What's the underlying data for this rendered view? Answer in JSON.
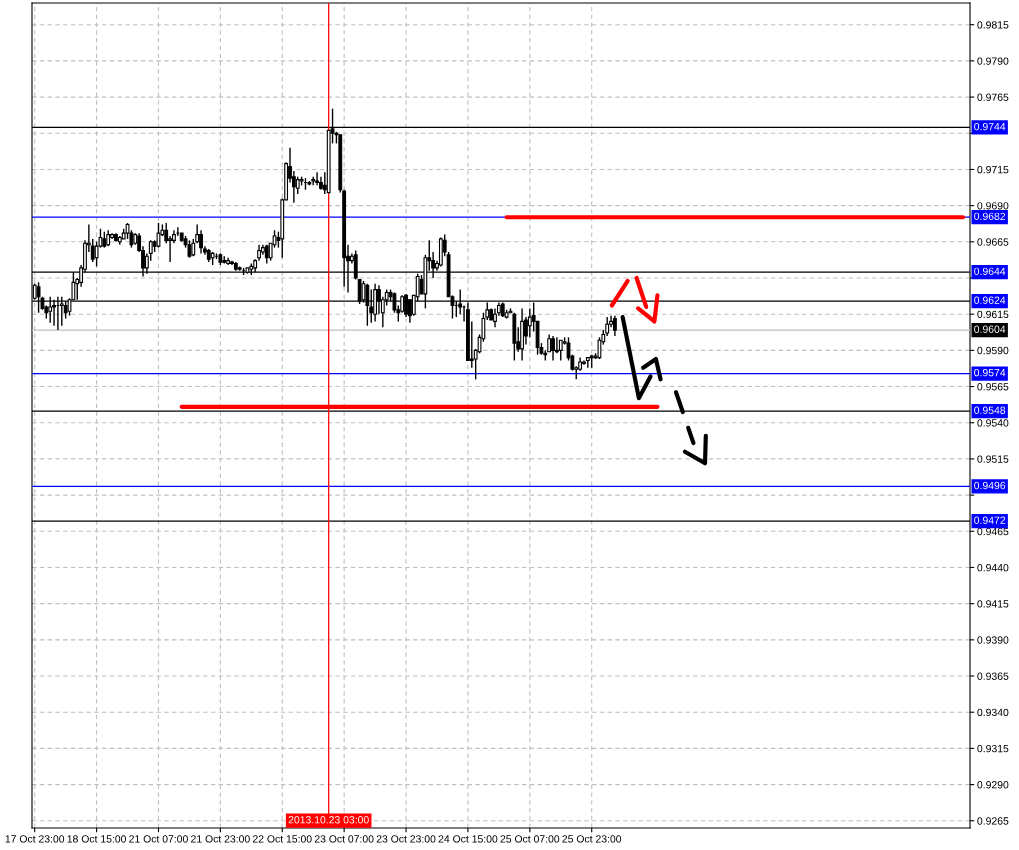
{
  "chart_data": {
    "type": "candlestick",
    "categories": [
      "17 Oct 23:00",
      null,
      null,
      null,
      null,
      null,
      null,
      null,
      null,
      null,
      null,
      null,
      null,
      null,
      null,
      null,
      "18 Oct 15:00",
      null,
      null,
      null,
      null,
      null,
      null,
      null,
      null,
      null,
      null,
      null,
      null,
      null,
      null,
      null,
      "21 Oct 07:00",
      null,
      null,
      null,
      null,
      null,
      null,
      null,
      null,
      null,
      null,
      null,
      null,
      null,
      null,
      null,
      "21 Oct 23:00",
      null,
      null,
      null,
      null,
      null,
      null,
      null,
      null,
      null,
      null,
      null,
      null,
      null,
      null,
      null,
      "22 Oct 15:00",
      null,
      null,
      null,
      null,
      null,
      null,
      null,
      null,
      null,
      null,
      null,
      null,
      null,
      null,
      null,
      "23 Oct 07:00",
      null,
      null,
      null,
      null,
      null,
      null,
      null,
      null,
      null,
      null,
      null,
      null,
      null,
      null,
      null,
      "23 Oct 23:00",
      null,
      null,
      null,
      null,
      null,
      null,
      null,
      null,
      null,
      null,
      null,
      null,
      null,
      null,
      null,
      "24 Oct 15:00",
      null,
      null,
      null,
      null,
      null,
      null,
      null,
      null,
      null,
      null,
      null,
      null,
      null,
      null,
      null,
      "25 Oct 07:00",
      null,
      null,
      null,
      null,
      null,
      null,
      null,
      null,
      null,
      null,
      null,
      null,
      null,
      null,
      null,
      "25 Oct 23:00",
      null,
      null,
      null,
      null,
      null,
      null,
      null,
      null,
      null,
      null,
      null,
      null,
      null,
      null,
      null,
      null,
      null,
      null,
      null,
      null,
      null,
      null,
      null,
      null,
      null,
      null,
      null,
      null,
      null,
      null,
      null,
      null,
      null,
      null,
      null,
      null,
      null,
      null,
      null,
      null,
      null,
      null,
      null,
      null,
      null,
      null,
      null,
      null,
      null,
      null,
      null,
      null,
      null,
      null,
      null,
      null,
      null,
      null,
      null,
      null,
      null,
      null,
      null,
      null,
      null,
      null,
      null,
      null,
      null,
      null,
      null,
      null,
      null,
      null,
      null,
      null,
      null,
      null,
      null,
      null,
      null,
      null,
      null,
      null,
      null,
      null,
      null,
      null,
      null,
      null,
      null,
      null,
      null,
      null,
      null,
      null,
      null
    ],
    "ohlc": [
      [
        0.9626,
        0.9636,
        0.9625,
        0.9635
      ],
      [
        0.9634,
        0.9637,
        0.9616,
        0.9627
      ],
      [
        0.9626,
        0.9627,
        0.9618,
        0.9619
      ],
      [
        0.962,
        0.9621,
        0.9612,
        0.9616
      ],
      [
        0.9617,
        0.9627,
        0.9609,
        0.962
      ],
      [
        0.9621,
        0.9625,
        0.9607,
        0.962
      ],
      [
        0.9621,
        0.9627,
        0.9604,
        0.9621
      ],
      [
        0.9621,
        0.9627,
        0.9607,
        0.9622
      ],
      [
        0.9621,
        0.9624,
        0.9612,
        0.9616
      ],
      [
        0.9617,
        0.9626,
        0.9614,
        0.9625
      ],
      [
        0.9625,
        0.9644,
        0.9625,
        0.9637
      ],
      [
        0.9636,
        0.964,
        0.9625,
        0.9639
      ],
      [
        0.9637,
        0.9649,
        0.9634,
        0.9647
      ],
      [
        0.9646,
        0.9666,
        0.9644,
        0.9664
      ],
      [
        0.9663,
        0.9677,
        0.9658,
        0.9664
      ],
      [
        0.9662,
        0.9667,
        0.9651,
        0.9653
      ],
      [
        0.9654,
        0.9665,
        0.9648,
        0.9662
      ],
      [
        0.9662,
        0.9674,
        0.9661,
        0.9668
      ],
      [
        0.9667,
        0.9672,
        0.9661,
        0.9662
      ],
      [
        0.9663,
        0.9673,
        0.9662,
        0.967
      ],
      [
        0.9668,
        0.9671,
        0.9667,
        0.967
      ],
      [
        0.967,
        0.9671,
        0.9665,
        0.9666
      ],
      [
        0.9665,
        0.9669,
        0.9663,
        0.9668
      ],
      [
        0.9667,
        0.9674,
        0.9667,
        0.9671
      ],
      [
        0.9671,
        0.9678,
        0.9667,
        0.9677
      ],
      [
        0.9671,
        0.9673,
        0.9661,
        0.9663
      ],
      [
        0.9664,
        0.9671,
        0.9663,
        0.967
      ],
      [
        0.9669,
        0.9671,
        0.9658,
        0.9659
      ],
      [
        0.9659,
        0.9662,
        0.9641,
        0.9647
      ],
      [
        0.9647,
        0.9657,
        0.9643,
        0.9655
      ],
      [
        0.9657,
        0.9666,
        0.9652,
        0.9665
      ],
      [
        0.9665,
        0.9666,
        0.9658,
        0.9662
      ],
      [
        0.9662,
        0.9678,
        0.9661,
        0.9671
      ],
      [
        0.967,
        0.9677,
        0.9669,
        0.9673
      ],
      [
        0.9673,
        0.9678,
        0.9664,
        0.9666
      ],
      [
        0.9666,
        0.9669,
        0.9651,
        0.9667
      ],
      [
        0.9666,
        0.9673,
        0.9664,
        0.967
      ],
      [
        0.9671,
        0.9675,
        0.9669,
        0.9671
      ],
      [
        0.9671,
        0.9671,
        0.9665,
        0.9666
      ],
      [
        0.9667,
        0.9669,
        0.9661,
        0.9663
      ],
      [
        0.9663,
        0.9666,
        0.9654,
        0.9655
      ],
      [
        0.9656,
        0.9667,
        0.9655,
        0.9664
      ],
      [
        0.9665,
        0.9677,
        0.9664,
        0.967
      ],
      [
        0.967,
        0.9673,
        0.9657,
        0.9661
      ],
      [
        0.966,
        0.9662,
        0.9656,
        0.9658
      ],
      [
        0.9659,
        0.966,
        0.9651,
        0.9653
      ],
      [
        0.9654,
        0.9658,
        0.9649,
        0.9657
      ],
      [
        0.9655,
        0.9657,
        0.9653,
        0.9655
      ],
      [
        0.9656,
        0.9657,
        0.9649,
        0.9651
      ],
      [
        0.9652,
        0.9655,
        0.965,
        0.9651
      ],
      [
        0.965,
        0.9654,
        0.9649,
        0.9652
      ],
      [
        0.9651,
        0.9652,
        0.9649,
        0.965
      ],
      [
        0.965,
        0.9651,
        0.9645,
        0.9646
      ],
      [
        0.9647,
        0.9648,
        0.9645,
        0.9646
      ],
      [
        0.9645,
        0.9647,
        0.9642,
        0.9645
      ],
      [
        0.9644,
        0.9647,
        0.9643,
        0.9647
      ],
      [
        0.9646,
        0.965,
        0.9642,
        0.9648
      ],
      [
        0.9647,
        0.9653,
        0.9644,
        0.9652
      ],
      [
        0.9654,
        0.9663,
        0.9652,
        0.9659
      ],
      [
        0.9658,
        0.9663,
        0.9656,
        0.9661
      ],
      [
        0.9662,
        0.9663,
        0.965,
        0.9654
      ],
      [
        0.9654,
        0.9664,
        0.9652,
        0.9664
      ],
      [
        0.9663,
        0.9673,
        0.9661,
        0.9669
      ],
      [
        0.9668,
        0.9672,
        0.9661,
        0.9666
      ],
      [
        0.9667,
        0.9695,
        0.9654,
        0.9694
      ],
      [
        0.9694,
        0.972,
        0.9694,
        0.9719
      ],
      [
        0.9717,
        0.973,
        0.9706,
        0.9709
      ],
      [
        0.971,
        0.9714,
        0.9692,
        0.9703
      ],
      [
        0.9702,
        0.971,
        0.9698,
        0.9708
      ],
      [
        0.9707,
        0.971,
        0.9704,
        0.9708
      ],
      [
        0.9706,
        0.9709,
        0.9701,
        0.9706
      ],
      [
        0.9706,
        0.9707,
        0.9704,
        0.9705
      ],
      [
        0.9707,
        0.971,
        0.9704,
        0.9708
      ],
      [
        0.9707,
        0.9713,
        0.9704,
        0.9706
      ],
      [
        0.9706,
        0.971,
        0.9701,
        0.9702
      ],
      [
        0.9704,
        0.9713,
        0.9698,
        0.9701
      ],
      [
        0.9699,
        0.9742,
        0.9699,
        0.9742
      ],
      [
        0.9743,
        0.9757,
        0.9733,
        0.974
      ],
      [
        0.974,
        0.9741,
        0.9733,
        0.9739
      ],
      [
        0.9739,
        0.9739,
        0.9699,
        0.9701
      ],
      [
        0.97,
        0.9701,
        0.9634,
        0.9654
      ],
      [
        0.9655,
        0.9663,
        0.963,
        0.9652
      ],
      [
        0.9652,
        0.9657,
        0.965,
        0.9655
      ],
      [
        0.9656,
        0.9659,
        0.9639,
        0.964
      ],
      [
        0.9639,
        0.9639,
        0.9622,
        0.9624
      ],
      [
        0.9625,
        0.9638,
        0.9623,
        0.9636
      ],
      [
        0.9635,
        0.9636,
        0.9607,
        0.9621
      ],
      [
        0.962,
        0.9632,
        0.9609,
        0.9616
      ],
      [
        0.9615,
        0.9636,
        0.961,
        0.9632
      ],
      [
        0.9632,
        0.9635,
        0.9615,
        0.9624
      ],
      [
        0.9616,
        0.9627,
        0.9606,
        0.9625
      ],
      [
        0.9625,
        0.9632,
        0.9621,
        0.963
      ],
      [
        0.963,
        0.9632,
        0.9624,
        0.9627
      ],
      [
        0.9629,
        0.963,
        0.9616,
        0.9618
      ],
      [
        0.9618,
        0.9621,
        0.961,
        0.9616
      ],
      [
        0.9617,
        0.9628,
        0.9616,
        0.9627
      ],
      [
        0.9628,
        0.9629,
        0.9613,
        0.9615
      ],
      [
        0.9625,
        0.9625,
        0.9609,
        0.9614
      ],
      [
        0.9615,
        0.9628,
        0.9614,
        0.9628
      ],
      [
        0.9627,
        0.9643,
        0.9624,
        0.9641
      ],
      [
        0.9639,
        0.9642,
        0.9629,
        0.9629
      ],
      [
        0.9629,
        0.9656,
        0.9619,
        0.9654
      ],
      [
        0.9654,
        0.9666,
        0.9645,
        0.9652
      ],
      [
        0.9652,
        0.9658,
        0.964,
        0.9647
      ],
      [
        0.9647,
        0.9652,
        0.9645,
        0.965
      ],
      [
        0.9649,
        0.9668,
        0.9648,
        0.9667
      ],
      [
        0.9666,
        0.967,
        0.9655,
        0.9658
      ],
      [
        0.9656,
        0.9658,
        0.9627,
        0.9627
      ],
      [
        0.9627,
        0.9628,
        0.9612,
        0.9621
      ],
      [
        0.9621,
        0.9624,
        0.9613,
        0.9621
      ],
      [
        0.9622,
        0.9632,
        0.9615,
        0.962
      ],
      [
        0.962,
        0.9621,
        0.961,
        0.962
      ],
      [
        0.9618,
        0.9623,
        0.9583,
        0.9583
      ],
      [
        0.9584,
        0.961,
        0.9578,
        0.9583
      ],
      [
        0.9584,
        0.9591,
        0.957,
        0.959
      ],
      [
        0.9589,
        0.9601,
        0.9588,
        0.9599
      ],
      [
        0.9598,
        0.9616,
        0.9596,
        0.9612
      ],
      [
        0.9613,
        0.9623,
        0.9611,
        0.9618
      ],
      [
        0.9618,
        0.9619,
        0.9611,
        0.9611
      ],
      [
        0.961,
        0.9619,
        0.9606,
        0.9615
      ],
      [
        0.9616,
        0.9623,
        0.9614,
        0.9621
      ],
      [
        0.9622,
        0.9623,
        0.9613,
        0.9614
      ],
      [
        0.9613,
        0.9618,
        0.9612,
        0.9616
      ],
      [
        0.9616,
        0.9619,
        0.9616,
        0.9617
      ],
      [
        0.9615,
        0.9616,
        0.9583,
        0.9595
      ],
      [
        0.9596,
        0.9606,
        0.9589,
        0.9591
      ],
      [
        0.9591,
        0.9619,
        0.9583,
        0.961
      ],
      [
        0.9611,
        0.9613,
        0.9594,
        0.96
      ],
      [
        0.9607,
        0.9619,
        0.9599,
        0.9613
      ],
      [
        0.9614,
        0.9623,
        0.9603,
        0.961
      ],
      [
        0.961,
        0.961,
        0.9587,
        0.9592
      ],
      [
        0.9592,
        0.9595,
        0.9587,
        0.9588
      ],
      [
        0.9588,
        0.959,
        0.9583,
        0.9587
      ],
      [
        0.9589,
        0.9601,
        0.9589,
        0.9598
      ],
      [
        0.9598,
        0.96,
        0.9583,
        0.959
      ],
      [
        0.959,
        0.9599,
        0.9588,
        0.9589
      ],
      [
        0.959,
        0.9597,
        0.9583,
        0.9597
      ],
      [
        0.9595,
        0.9599,
        0.9594,
        0.9596
      ],
      [
        0.9595,
        0.9599,
        0.9583,
        0.9585
      ],
      [
        0.9586,
        0.9587,
        0.9576,
        0.9577
      ],
      [
        0.9577,
        0.9579,
        0.957,
        0.9578
      ],
      [
        0.9577,
        0.9585,
        0.9576,
        0.9582
      ],
      [
        0.9581,
        0.9583,
        0.958,
        0.9582
      ],
      [
        0.9583,
        0.9585,
        0.9578,
        0.9585
      ],
      [
        0.9585,
        0.9587,
        0.9578,
        0.9586
      ],
      [
        0.9585,
        0.9588,
        0.9584,
        0.9586
      ],
      [
        0.9585,
        0.9599,
        0.9584,
        0.9597
      ],
      [
        0.9596,
        0.9604,
        0.9594,
        0.9601
      ],
      [
        0.9602,
        0.9613,
        0.96,
        0.9608
      ],
      [
        0.9608,
        0.9614,
        0.9606,
        0.961
      ],
      [
        0.9612,
        0.9614,
        0.96,
        0.9604
      ],
      null,
      null,
      null,
      null,
      null,
      null,
      null,
      null,
      null,
      null,
      null,
      null,
      null,
      null,
      null,
      null,
      null,
      null,
      null,
      null,
      null,
      null,
      null,
      null,
      null,
      null,
      null,
      null,
      null,
      null,
      null,
      null,
      null,
      null,
      null,
      null,
      null,
      null,
      null,
      null,
      null,
      null,
      null,
      null,
      null,
      null,
      null,
      null,
      null,
      null,
      null,
      null,
      null,
      null,
      null,
      null,
      null,
      null,
      null,
      null,
      null,
      null,
      null,
      null,
      null,
      null,
      null,
      null,
      null,
      null,
      null,
      null,
      null,
      null,
      null,
      null,
      null,
      null,
      null,
      null,
      null,
      null,
      null,
      null,
      null,
      null,
      null,
      null,
      null,
      null,
      null
    ],
    "series": [
      {
        "type": "line",
        "color": "#ff0000",
        "values": [
          null,
          null,
          null,
          null,
          null,
          null,
          null,
          null,
          null,
          null,
          null,
          null,
          null,
          null,
          null,
          null,
          null,
          null,
          null,
          null,
          null,
          null,
          null,
          null,
          null,
          null,
          null,
          null,
          null,
          null,
          null,
          null,
          null,
          null,
          null,
          null,
          null,
          null,
          0.9551,
          null,
          null,
          null,
          null,
          null,
          null,
          null,
          null,
          null,
          null,
          null,
          null,
          null,
          null,
          null,
          null,
          null,
          null,
          null,
          null,
          null,
          null,
          null,
          null,
          null,
          null,
          null,
          null,
          null,
          null,
          null,
          null,
          null,
          null,
          null,
          null,
          null,
          null,
          null,
          null,
          null,
          null,
          null,
          null,
          null,
          null,
          null,
          null,
          null,
          null,
          null,
          null,
          null,
          null,
          null,
          null,
          null,
          null,
          null,
          null,
          null,
          null,
          null,
          null,
          null,
          null,
          null,
          null,
          null,
          null,
          null,
          null,
          null,
          null,
          null,
          null,
          null,
          null,
          null,
          null,
          null,
          null,
          null,
          null,
          null,
          null,
          null,
          null,
          null,
          null,
          null,
          null,
          null,
          null,
          null,
          null,
          null,
          null,
          null,
          null,
          null,
          null,
          null,
          null,
          null,
          null,
          null,
          null,
          null,
          null,
          null,
          null,
          null,
          null,
          null,
          null,
          null,
          null,
          null,
          null,
          null,
          null,
          0.9551,
          null,
          null,
          null,
          null,
          null,
          null,
          null,
          null,
          null,
          null,
          null,
          null,
          null,
          null,
          null,
          null,
          null,
          null,
          null,
          null,
          null,
          null,
          null,
          null,
          null,
          null,
          null,
          null,
          null,
          null,
          null,
          null,
          null,
          null,
          null,
          null,
          null,
          null,
          null,
          null,
          null,
          null,
          null,
          null,
          null,
          null,
          null,
          null,
          null,
          null,
          null,
          null,
          null,
          null,
          null,
          null,
          null,
          null,
          null,
          null,
          null,
          null,
          null,
          null,
          null,
          null,
          null,
          null,
          null,
          null,
          null,
          null,
          null,
          null,
          null,
          null,
          null,
          null,
          null,
          null
        ]
      },
      {
        "type": "line",
        "color": "#ff0000",
        "values": [
          null,
          null,
          null,
          null,
          null,
          null,
          null,
          null,
          null,
          null,
          null,
          null,
          null,
          null,
          null,
          null,
          null,
          null,
          null,
          null,
          null,
          null,
          null,
          null,
          null,
          null,
          null,
          null,
          null,
          null,
          null,
          null,
          null,
          null,
          null,
          null,
          null,
          null,
          null,
          null,
          null,
          null,
          null,
          null,
          null,
          null,
          null,
          null,
          null,
          null,
          null,
          null,
          null,
          null,
          null,
          null,
          null,
          null,
          null,
          null,
          null,
          null,
          null,
          null,
          null,
          null,
          null,
          null,
          null,
          null,
          null,
          null,
          null,
          null,
          null,
          null,
          null,
          null,
          null,
          null,
          null,
          null,
          null,
          null,
          null,
          null,
          null,
          null,
          null,
          null,
          null,
          null,
          null,
          null,
          null,
          null,
          null,
          null,
          null,
          null,
          null,
          null,
          null,
          null,
          null,
          null,
          null,
          null,
          null,
          null,
          null,
          null,
          null,
          null,
          null,
          null,
          null,
          null,
          null,
          null,
          null,
          null,
          0.9682,
          null,
          null,
          null,
          null,
          null,
          null,
          null,
          null,
          null,
          null,
          null,
          null,
          null,
          null,
          null,
          null,
          null,
          null,
          null,
          null,
          null,
          null,
          null,
          null,
          null,
          null,
          null,
          null,
          null,
          null,
          null,
          null,
          null,
          null,
          null,
          null,
          null,
          null,
          null,
          null,
          null,
          null,
          null,
          null,
          null,
          null,
          null,
          null,
          null,
          null,
          null,
          null,
          null,
          null,
          null,
          null,
          null,
          null,
          null,
          null,
          null,
          null,
          null,
          null,
          null,
          null,
          null,
          null,
          null,
          null,
          null,
          null,
          null,
          null,
          null,
          null,
          null,
          null,
          null,
          null,
          null,
          null,
          null,
          null,
          null,
          null,
          null,
          null,
          null,
          null,
          null,
          null,
          null,
          null,
          null,
          null,
          null,
          null,
          null,
          null,
          null,
          null,
          null,
          null,
          null,
          null,
          null,
          null,
          null,
          null,
          null,
          null,
          null,
          null,
          null,
          null,
          null,
          0.9682,
          null
        ]
      }
    ],
    "ylim": [
      0.926,
      0.983
    ],
    "yticks": [
      {
        "value": 0.9265,
        "label": "0.9265"
      },
      {
        "value": 0.929,
        "label": "0.9290"
      },
      {
        "value": 0.9315,
        "label": "0.9315"
      },
      {
        "value": 0.934,
        "label": "0.9340"
      },
      {
        "value": 0.9365,
        "label": "0.9365"
      },
      {
        "value": 0.939,
        "label": "0.9390"
      },
      {
        "value": 0.9415,
        "label": "0.9415"
      },
      {
        "value": 0.944,
        "label": "0.9440"
      },
      {
        "value": 0.9465,
        "label": "0.9465"
      },
      {
        "value": 0.949,
        "label": null
      },
      {
        "value": 0.9515,
        "label": "0.9515"
      },
      {
        "value": 0.954,
        "label": "0.9540"
      },
      {
        "value": 0.9565,
        "label": "0.9565"
      },
      {
        "value": 0.959,
        "label": "0.9590"
      },
      {
        "value": 0.9615,
        "label": "0.9615"
      },
      {
        "value": 0.964,
        "label": null
      },
      {
        "value": 0.9665,
        "label": "0.9665"
      },
      {
        "value": 0.969,
        "label": "0.9690"
      },
      {
        "value": 0.9715,
        "label": "0.9715"
      },
      {
        "value": 0.974,
        "label": null
      },
      {
        "value": 0.9765,
        "label": "0.9765"
      },
      {
        "value": 0.979,
        "label": "0.9790"
      },
      {
        "value": 0.9815,
        "label": "0.9815"
      }
    ],
    "grid": true,
    "annotations": [
      "2013.10.23 03:00"
    ],
    "ref_lines": [
      {
        "axis": "y",
        "value": 0.9744,
        "label": "0.9744",
        "color": "#000000"
      },
      {
        "axis": "y",
        "value": 0.9682,
        "label": "0.9682",
        "color": "#0000ff"
      },
      {
        "axis": "y",
        "value": 0.9644,
        "label": "0.9644",
        "color": "#000000"
      },
      {
        "axis": "y",
        "value": 0.9624,
        "label": "0.9624",
        "color": "#000000"
      },
      {
        "axis": "y",
        "value": 0.9604,
        "label": "0.9604",
        "color": "#c0c0c0"
      },
      {
        "axis": "y",
        "value": 0.9574,
        "label": "0.9574",
        "color": "#0000ff"
      },
      {
        "axis": "y",
        "value": 0.9548,
        "label": "0.9548",
        "color": "#000000"
      },
      {
        "axis": "y",
        "value": 0.9496,
        "label": "0.9496",
        "color": "#0000ff"
      },
      {
        "axis": "y",
        "value": 0.9472,
        "label": "0.9472",
        "color": "#000000"
      }
    ]
  }
}
